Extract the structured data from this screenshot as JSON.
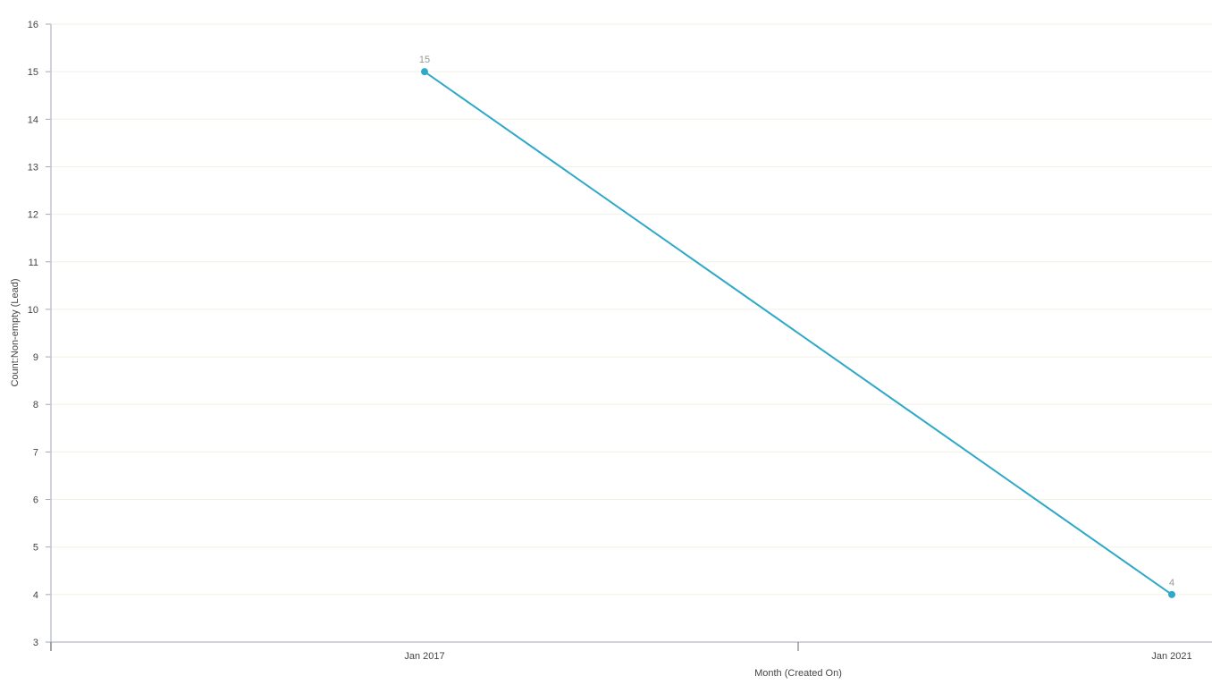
{
  "chart_data": {
    "type": "line",
    "categories": [
      "Jan 2017",
      "Jan 2021"
    ],
    "series": [
      {
        "values": [
          15,
          4
        ],
        "color": "#2fa8c9"
      }
    ],
    "data_labels": [
      "15",
      "4"
    ],
    "xlabel": "Month (Created On)",
    "ylabel": "Count:Non-empty (Lead)",
    "ylim": [
      3,
      16
    ],
    "yticks": [
      "3",
      "4",
      "5",
      "6",
      "7",
      "8",
      "9",
      "10",
      "11",
      "12",
      "13",
      "14",
      "15",
      "16"
    ],
    "grid": true,
    "gridColor": "#f0f0e4",
    "axisColor": "#a0a8b4"
  }
}
